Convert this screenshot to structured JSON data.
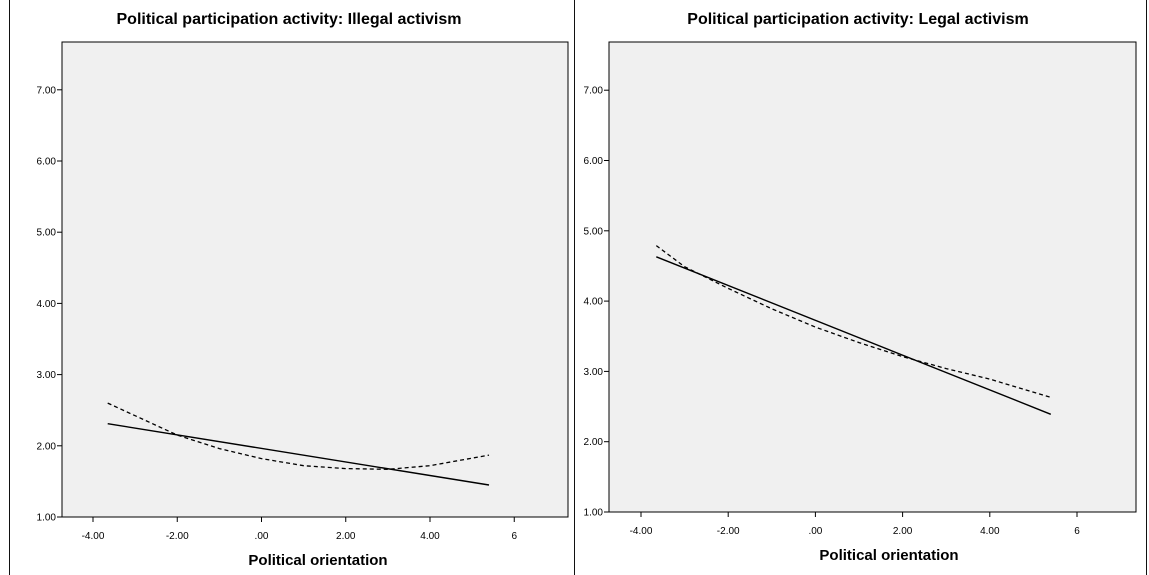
{
  "chart_data": [
    {
      "type": "line",
      "title": "Political participation activity: Illegal activism",
      "xlabel": "Political orientation",
      "ylabel": "",
      "xlim": [
        -4.5,
        6.0
      ],
      "ylim": [
        1.0,
        7.7
      ],
      "xticks": [
        "-4.00",
        "-2.00",
        ".00",
        "2.00",
        "4.00",
        "6"
      ],
      "yticks": [
        "1.00",
        "2.00",
        "3.00",
        "4.00",
        "5.00",
        "6.00",
        "7.00"
      ],
      "grid": false,
      "series": [
        {
          "style": "solid",
          "x": [
            -3.65,
            5.4
          ],
          "y": [
            2.31,
            1.45
          ]
        },
        {
          "style": "dashed",
          "x": [
            -3.65,
            -2.0,
            -1.0,
            0.0,
            1.0,
            2.0,
            3.0,
            4.0,
            5.4
          ],
          "y": [
            2.6,
            2.15,
            1.96,
            1.82,
            1.72,
            1.68,
            1.67,
            1.72,
            1.87
          ]
        }
      ]
    },
    {
      "type": "line",
      "title": "Political participation activity: Legal activism",
      "xlabel": "Political orientation",
      "ylabel": "",
      "xlim": [
        -4.5,
        6.0
      ],
      "ylim": [
        1.0,
        7.7
      ],
      "xticks": [
        "-4.00",
        "-2.00",
        ".00",
        "2.00",
        "4.00",
        "6"
      ],
      "yticks": [
        "1.00",
        "2.00",
        "3.00",
        "4.00",
        "5.00",
        "6.00",
        "7.00"
      ],
      "grid": false,
      "series": [
        {
          "style": "solid",
          "x": [
            -3.65,
            5.4
          ],
          "y": [
            4.63,
            2.39
          ]
        },
        {
          "style": "dashed",
          "x": [
            -3.65,
            -3.0,
            -2.0,
            -1.0,
            0.0,
            1.0,
            2.0,
            3.0,
            4.0,
            5.4
          ],
          "y": [
            4.79,
            4.49,
            4.18,
            3.89,
            3.63,
            3.41,
            3.21,
            3.04,
            2.89,
            2.63
          ]
        }
      ]
    }
  ]
}
